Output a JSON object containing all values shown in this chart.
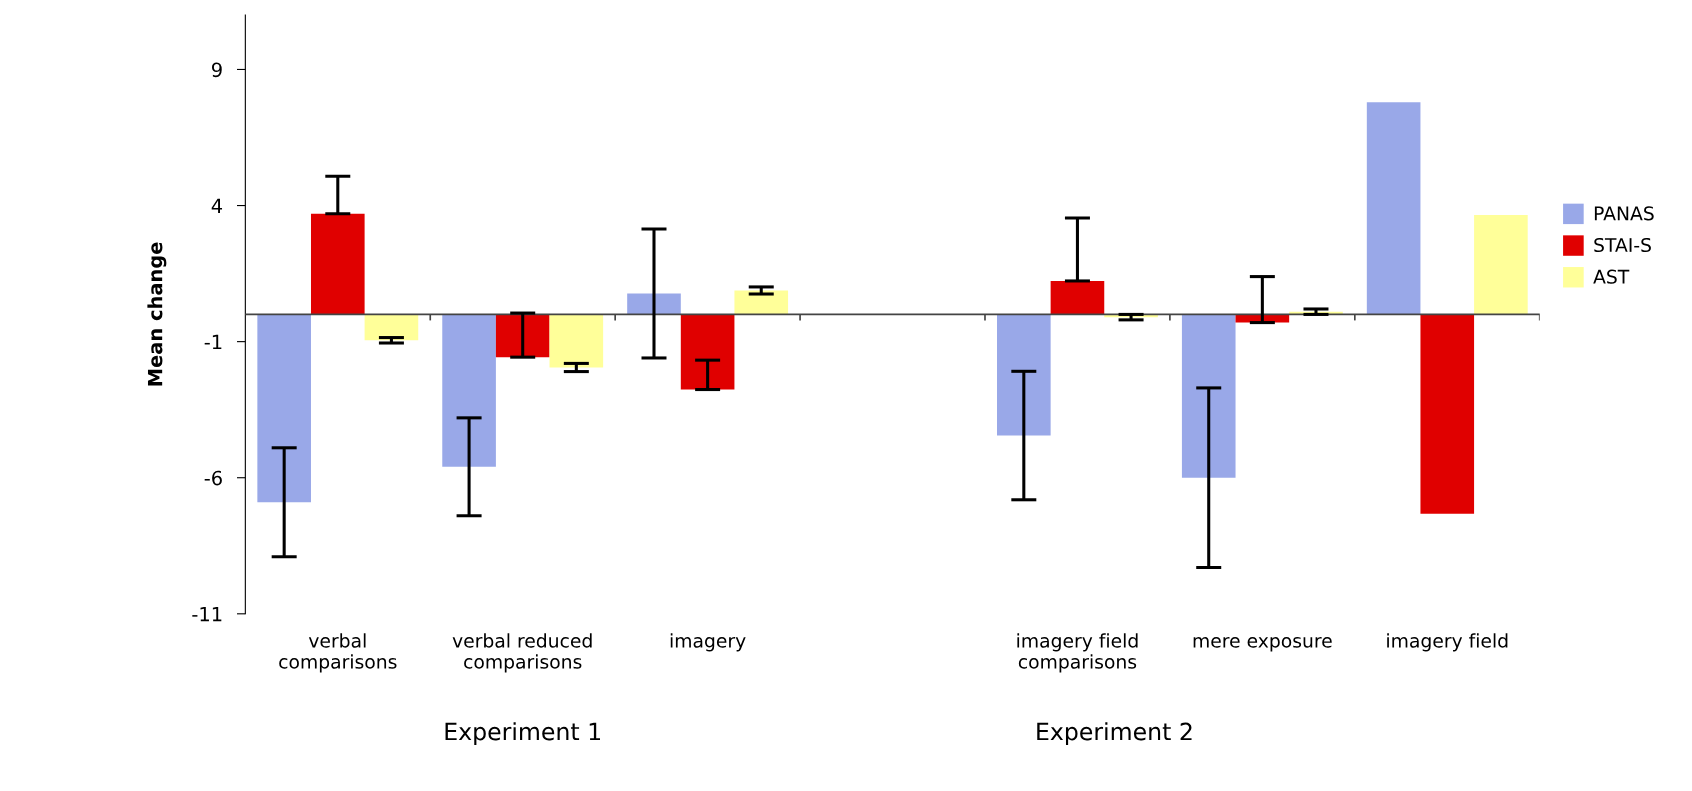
{
  "chart_data": {
    "type": "bar",
    "ylabel": "Mean change",
    "categories": [
      "verbal\ncomparisons",
      "verbal reduced\ncomparisons",
      "imagery",
      null,
      "imagery field\ncomparisons",
      "mere exposure",
      "imagery field"
    ],
    "series": [
      {
        "name": "PANAS",
        "color": "#99a8e8",
        "values": [
          -6.9,
          -5.6,
          0.77,
          null,
          -4.45,
          -6.0,
          7.8
        ],
        "errors": [
          2.0,
          1.8,
          2.37,
          null,
          2.36,
          3.3,
          null
        ]
      },
      {
        "name": "STAI-S",
        "color": "#e00000",
        "values": [
          3.7,
          -1.57,
          -2.76,
          null,
          1.23,
          -0.3,
          -7.32
        ],
        "errors": [
          [
            3.7,
            5.08
          ],
          [
            -1.57,
            0.05
          ],
          [
            -2.76,
            -1.68
          ],
          null,
          [
            1.23,
            3.54
          ],
          [
            -0.3,
            1.39
          ],
          null
        ]
      },
      {
        "name": "AST",
        "color": "#ffff99",
        "values": [
          -0.95,
          -1.95,
          0.88,
          null,
          -0.1,
          0.1,
          3.65
        ],
        "errors": [
          0.1,
          0.15,
          0.13,
          null,
          0.1,
          0.1,
          null
        ]
      }
    ],
    "ylim": [
      -11,
      11
    ],
    "yticks": [
      -11,
      -6,
      -1,
      4,
      9
    ],
    "grid": false,
    "legend": "right",
    "annotations": [
      "Experiment 1",
      "Experiment 2"
    ]
  }
}
